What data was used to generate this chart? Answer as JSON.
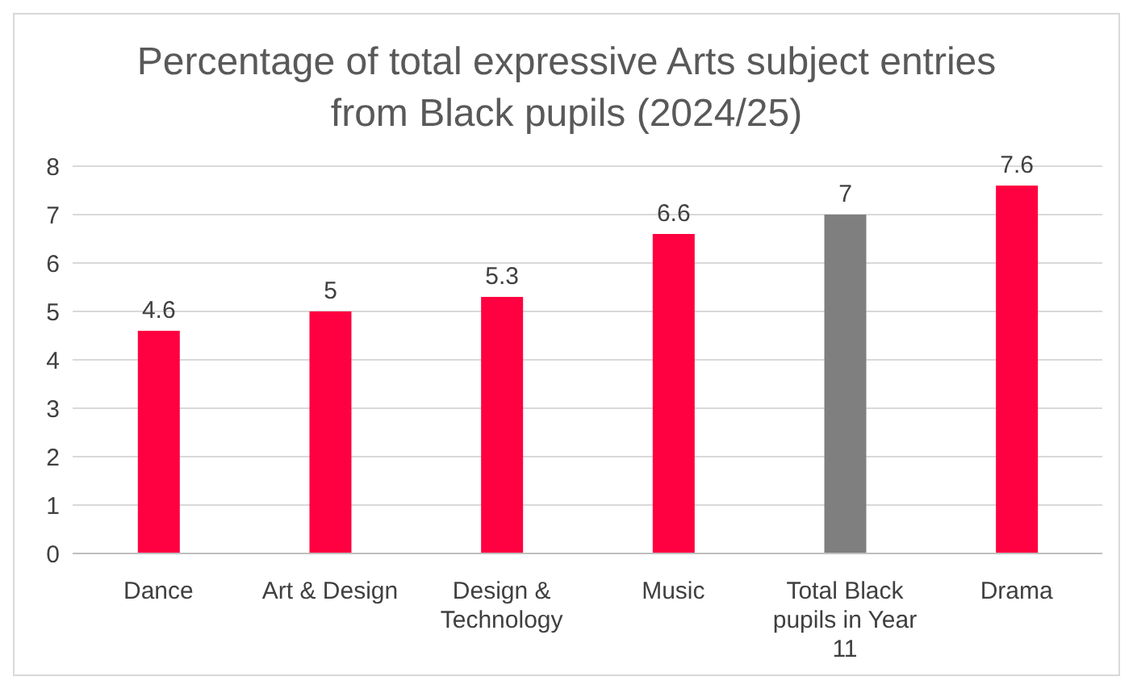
{
  "chart_data": {
    "type": "bar",
    "title": "Percentage of total expressive Arts subject entries from Black pupils (2024/25)",
    "categories": [
      "Dance",
      "Art & Design",
      "Design & Technology",
      "Music",
      "Total Black pupils in Year 11",
      "Drama"
    ],
    "values": [
      4.6,
      5,
      5.3,
      6.6,
      7,
      7.6
    ],
    "colors": [
      "#ff0040",
      "#ff0040",
      "#ff0040",
      "#ff0040",
      "#7f7f7f",
      "#ff0040"
    ],
    "ylim": [
      0,
      8
    ],
    "yticks": [
      0,
      1,
      2,
      3,
      4,
      5,
      6,
      7,
      8
    ],
    "grid": "y",
    "data_labels": true
  }
}
